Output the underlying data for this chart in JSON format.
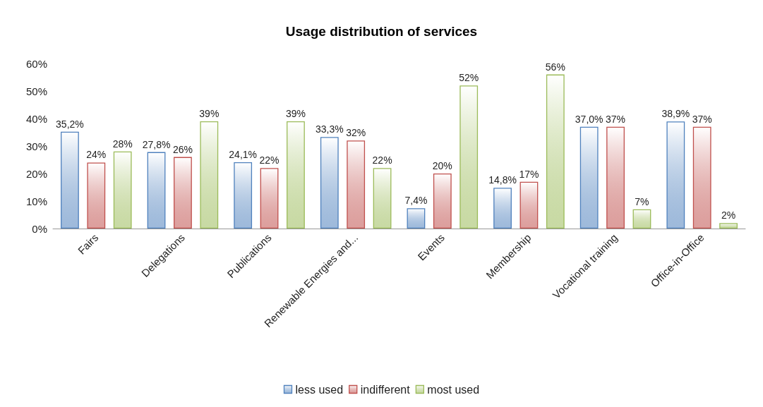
{
  "chart_data": {
    "type": "bar",
    "title": "Usage distribution of services",
    "categories": [
      "Fairs",
      "Delegations",
      "Publications",
      "Renewable Energies and...",
      "Events",
      "Membership",
      "Vocational training",
      "Office-in-Office"
    ],
    "series": [
      {
        "name": "less used",
        "color": "#4f81bd",
        "values": [
          35.2,
          27.8,
          24.1,
          33.3,
          7.4,
          14.8,
          37.0,
          38.9
        ],
        "value_labels": [
          "35,2%",
          "27,8%",
          "24,1%",
          "33,3%",
          "7,4%",
          "14,8%",
          "37,0%",
          "38,9%"
        ]
      },
      {
        "name": "indifferent",
        "color": "#c0504d",
        "values": [
          24,
          26,
          22,
          32,
          20,
          17,
          37,
          37
        ],
        "value_labels": [
          "24%",
          "26%",
          "22%",
          "32%",
          "20%",
          "17%",
          "37%",
          "37%"
        ]
      },
      {
        "name": "most used",
        "color": "#9bbb59",
        "values": [
          28,
          39,
          39,
          22,
          52,
          56,
          7,
          2
        ],
        "value_labels": [
          "28%",
          "39%",
          "39%",
          "22%",
          "52%",
          "56%",
          "7%",
          "2%"
        ]
      }
    ],
    "ylim": [
      0,
      60
    ],
    "yticks": [
      {
        "value": 0,
        "label": "0%"
      },
      {
        "value": 10,
        "label": "10%"
      },
      {
        "value": 20,
        "label": "20%"
      },
      {
        "value": 30,
        "label": "30%"
      },
      {
        "value": 40,
        "label": "40%"
      },
      {
        "value": 50,
        "label": "50%"
      },
      {
        "value": 60,
        "label": "60%"
      }
    ],
    "grid": false,
    "legend": "bottom"
  }
}
